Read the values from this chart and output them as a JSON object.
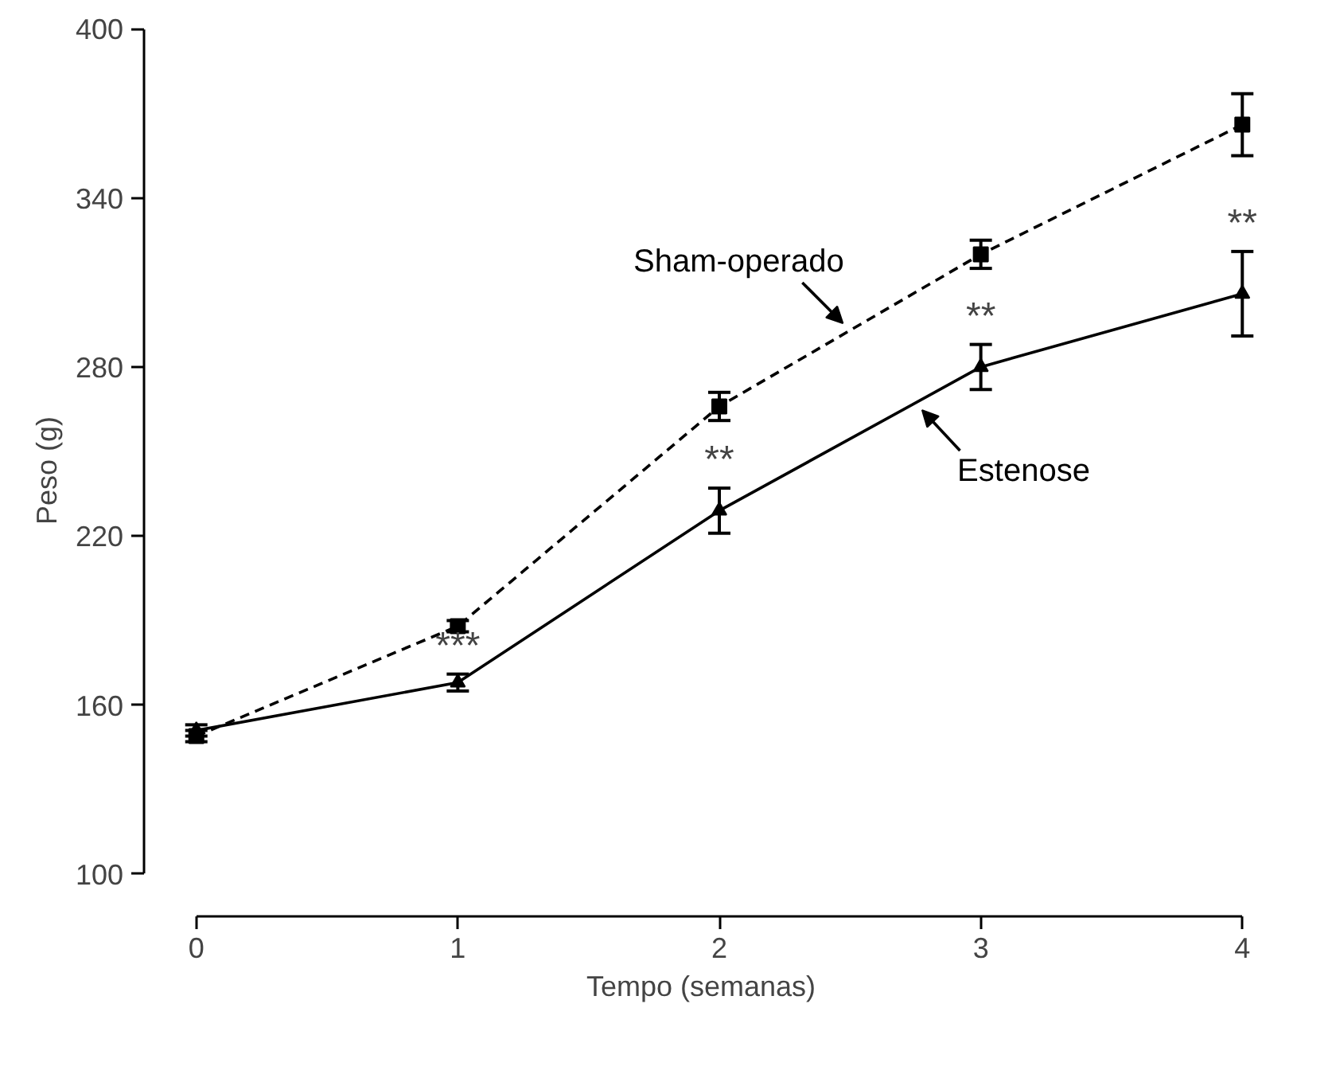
{
  "chart_data": {
    "type": "line",
    "xlabel": "Tempo (semanas)",
    "ylabel": "Peso (g)",
    "x": [
      0,
      1,
      2,
      3,
      4
    ],
    "series": [
      {
        "name": "Sham-operado",
        "color": "#000000",
        "values": [
          149,
          188,
          266,
          320,
          366
        ],
        "errors": [
          2,
          2,
          5,
          5,
          11
        ],
        "marker": "square",
        "line_style": "dashed"
      },
      {
        "name": "Estenose",
        "color": "#000000",
        "values": [
          151,
          168,
          229,
          280,
          306
        ],
        "errors": [
          2,
          3,
          8,
          8,
          15
        ],
        "marker": "triangle",
        "line_style": "solid"
      }
    ],
    "xlim": [
      0,
      4
    ],
    "xticks": [
      0,
      1,
      2,
      3,
      4
    ],
    "ylim": [
      100,
      400
    ],
    "yticks": [
      100,
      160,
      220,
      280,
      340,
      400
    ],
    "annotations": [
      "***",
      "**",
      "**",
      "**"
    ],
    "grid": false
  }
}
